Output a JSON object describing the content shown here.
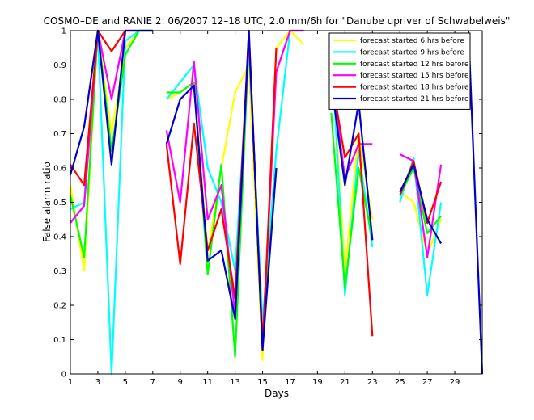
{
  "chart_data": {
    "type": "line",
    "title": "COSMO–DE and RANIE 2: 06/2007 12–18 UTC, 2.0 mm/6h for \"Danube upriver of Schwabelweis\"",
    "xlabel": "Days",
    "ylabel": "False alarm ratio",
    "xlim": [
      1,
      31
    ],
    "ylim": [
      0,
      1
    ],
    "xticks": [
      1,
      3,
      5,
      7,
      9,
      11,
      13,
      15,
      17,
      19,
      21,
      23,
      25,
      27,
      29
    ],
    "yticks": [
      0,
      0.1,
      0.2,
      0.3,
      0.4,
      0.5,
      0.6,
      0.7,
      0.8,
      0.9,
      1
    ],
    "ytick_labels": [
      "0",
      "0.1",
      "0.2",
      "0.3",
      "0.4",
      "0.5",
      "0.6",
      "0.7",
      "0.8",
      "0.9",
      "1"
    ],
    "grid": false,
    "legend_position": "top-right",
    "series": [
      {
        "name": "forecast started 6 hrs before",
        "color": "#ffff00",
        "points": [
          [
            1,
            0.55
          ],
          [
            2,
            0.3
          ],
          [
            3,
            1.0
          ],
          [
            4,
            0.7
          ],
          [
            5,
            0.95
          ],
          [
            6,
            1.0
          ],
          [
            7,
            1.0
          ],
          null,
          [
            8,
            0.8
          ],
          [
            9,
            0.82
          ],
          [
            10,
            0.85
          ],
          [
            11,
            0.35
          ],
          [
            12,
            0.6
          ],
          [
            13,
            0.82
          ],
          [
            14,
            0.9
          ],
          [
            15,
            0.04
          ],
          [
            16,
            0.95
          ],
          [
            17,
            1.0
          ],
          [
            18,
            0.96
          ],
          null,
          [
            20,
            0.98
          ],
          [
            21,
            0.3
          ],
          [
            22,
            0.7
          ],
          [
            23,
            0.45
          ],
          null,
          [
            25,
            0.53
          ],
          [
            26,
            0.5
          ],
          [
            27,
            0.35
          ],
          [
            28,
            0.45
          ]
        ]
      },
      {
        "name": "forecast started 9 hrs before",
        "color": "#00ffff",
        "points": [
          [
            1,
            0.48
          ],
          [
            2,
            0.5
          ],
          [
            3,
            1.0
          ],
          [
            4,
            0.0
          ],
          [
            5,
            0.97
          ],
          [
            6,
            1.0
          ],
          [
            7,
            1.0
          ],
          null,
          [
            8,
            0.8
          ],
          [
            9,
            0.85
          ],
          [
            10,
            0.9
          ],
          [
            11,
            0.6
          ],
          [
            12,
            0.5
          ],
          [
            13,
            0.3
          ],
          [
            14,
            0.95
          ],
          [
            15,
            0.15
          ],
          [
            16,
            0.65
          ],
          [
            17,
            1.0
          ],
          [
            18,
            1.0
          ],
          null,
          [
            20,
            0.96
          ],
          [
            21,
            0.23
          ],
          [
            22,
            0.65
          ],
          [
            23,
            0.37
          ],
          null,
          [
            25,
            0.5
          ],
          [
            26,
            0.63
          ],
          [
            27,
            0.23
          ],
          [
            28,
            0.5
          ]
        ]
      },
      {
        "name": "forecast started 12 hrs before",
        "color": "#00ff00",
        "points": [
          [
            1,
            0.52
          ],
          [
            2,
            0.34
          ],
          [
            3,
            1.0
          ],
          [
            4,
            0.65
          ],
          [
            5,
            0.93
          ],
          [
            6,
            1.0
          ],
          [
            7,
            1.0
          ],
          null,
          [
            8,
            0.82
          ],
          [
            9,
            0.82
          ],
          [
            10,
            0.85
          ],
          [
            11,
            0.29
          ],
          [
            12,
            0.61
          ],
          [
            13,
            0.05
          ],
          [
            14,
            0.97
          ],
          [
            15,
            0.1
          ],
          [
            16,
            0.6
          ],
          null,
          [
            20,
            0.76
          ],
          [
            21,
            0.25
          ],
          [
            22,
            0.6
          ],
          [
            23,
            0.39
          ],
          null,
          [
            25,
            0.52
          ],
          [
            26,
            0.6
          ],
          [
            27,
            0.41
          ],
          [
            28,
            0.46
          ]
        ]
      },
      {
        "name": "forecast started 15 hrs before",
        "color": "#ff00ff",
        "points": [
          [
            1,
            0.44
          ],
          [
            2,
            0.49
          ],
          [
            3,
            1.0
          ],
          [
            4,
            0.8
          ],
          [
            5,
            1.0
          ],
          [
            6,
            1.0
          ],
          [
            7,
            1.0
          ],
          null,
          [
            8,
            0.71
          ],
          [
            9,
            0.5
          ],
          [
            10,
            0.91
          ],
          [
            11,
            0.45
          ],
          [
            12,
            0.55
          ],
          [
            13,
            0.17
          ],
          [
            14,
            0.98
          ],
          [
            15,
            0.09
          ],
          [
            16,
            0.88
          ],
          [
            17,
            1.0
          ],
          [
            18,
            1.0
          ],
          null,
          [
            20,
            0.88
          ],
          [
            21,
            0.57
          ],
          [
            22,
            0.67
          ],
          [
            23,
            0.67
          ],
          null,
          [
            25,
            0.64
          ],
          [
            26,
            0.62
          ],
          [
            27,
            0.34
          ],
          [
            28,
            0.61
          ]
        ]
      },
      {
        "name": "forecast started 18 hrs before",
        "color": "#ff0000",
        "points": [
          [
            1,
            0.61
          ],
          [
            2,
            0.55
          ],
          [
            3,
            1.0
          ],
          [
            4,
            0.94
          ],
          [
            5,
            1.0
          ],
          null,
          [
            8,
            0.67
          ],
          [
            9,
            0.32
          ],
          [
            10,
            0.73
          ],
          [
            11,
            0.36
          ],
          [
            12,
            0.48
          ],
          [
            13,
            0.22
          ],
          [
            14,
            1.0
          ],
          [
            15,
            0.07
          ],
          [
            16,
            0.95
          ],
          null,
          [
            20,
            0.87
          ],
          [
            21,
            0.63
          ],
          [
            22,
            0.7
          ],
          [
            23,
            0.11
          ],
          null,
          [
            25,
            0.52
          ],
          [
            26,
            0.62
          ],
          [
            27,
            0.44
          ],
          [
            28,
            0.56
          ]
        ]
      },
      {
        "name": "forecast started 21 hrs before",
        "color": "#0000cc",
        "points": [
          [
            1,
            0.58
          ],
          [
            2,
            0.72
          ],
          [
            3,
            1.0
          ],
          [
            4,
            0.61
          ],
          [
            5,
            1.0
          ],
          [
            6,
            1.0
          ],
          [
            7,
            1.0
          ],
          null,
          [
            8,
            0.67
          ],
          [
            9,
            0.8
          ],
          [
            10,
            0.84
          ],
          [
            11,
            0.33
          ],
          [
            12,
            0.36
          ],
          [
            13,
            0.16
          ],
          [
            14,
            1.0
          ],
          [
            15,
            0.07
          ],
          [
            16,
            0.6
          ],
          null,
          [
            20,
            0.85
          ],
          [
            21,
            0.55
          ],
          [
            22,
            0.79
          ],
          [
            23,
            0.39
          ],
          null,
          [
            25,
            0.53
          ],
          [
            26,
            0.61
          ],
          [
            27,
            0.45
          ],
          [
            28,
            0.38
          ],
          null,
          [
            30,
            1.0
          ],
          [
            31,
            0.0
          ]
        ]
      }
    ]
  }
}
